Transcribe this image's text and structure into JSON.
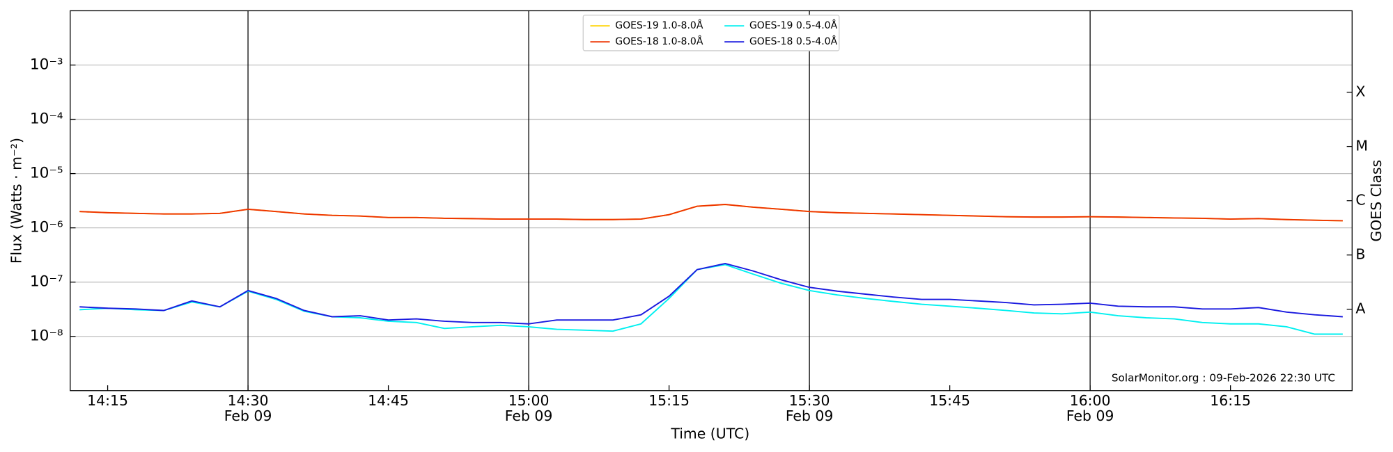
{
  "chart_data": {
    "type": "line",
    "x_label": "Time (UTC)",
    "y_label": "Flux (Watts · m⁻²)",
    "y2_label": "GOES Class",
    "annotation": "SolarMonitor.org : 09-Feb-2026 22:30 UTC",
    "ylog": true,
    "grid": true,
    "legend": "upper center",
    "xlim": [
      "14:11",
      "16:28"
    ],
    "xticks": [
      "14:15",
      {
        "value": "14:30",
        "label": [
          "14:30",
          "Feb 09"
        ]
      },
      "14:45",
      {
        "value": "15:00",
        "label": [
          "15:00",
          "Feb 09"
        ]
      },
      "15:15",
      {
        "value": "15:30",
        "label": [
          "15:30",
          "Feb 09"
        ]
      },
      "15:45",
      {
        "value": "16:00",
        "label": [
          "16:00",
          "Feb 09"
        ]
      },
      "16:15"
    ],
    "ylim": [
      1e-09,
      0.01
    ],
    "yticks": [
      {
        "value": 1e-08,
        "label": "10⁻⁸"
      },
      {
        "value": 1e-07,
        "label": "10⁻⁷"
      },
      {
        "value": 1e-06,
        "label": "10⁻⁶"
      },
      {
        "value": 1e-05,
        "label": "10⁻⁵"
      },
      {
        "value": 0.0001,
        "label": "10⁻⁴"
      },
      {
        "value": 0.001,
        "label": "10⁻³"
      }
    ],
    "y2lim": [
      1e-09,
      0.01
    ],
    "y2ticks": [
      {
        "value": 3.16e-08,
        "label": "A"
      },
      {
        "value": 3.16e-07,
        "label": "B"
      },
      {
        "value": 3.16e-06,
        "label": "C"
      },
      {
        "value": 3.16e-05,
        "label": "M"
      },
      {
        "value": 0.000316,
        "label": "X"
      }
    ],
    "x": [
      "14:12",
      "14:15",
      "14:18",
      "14:21",
      "14:24",
      "14:27",
      "14:30",
      "14:33",
      "14:36",
      "14:39",
      "14:42",
      "14:45",
      "14:48",
      "14:51",
      "14:54",
      "14:57",
      "15:00",
      "15:03",
      "15:06",
      "15:09",
      "15:12",
      "15:15",
      "15:18",
      "15:21",
      "15:24",
      "15:27",
      "15:30",
      "15:33",
      "15:36",
      "15:39",
      "15:42",
      "15:45",
      "15:48",
      "15:51",
      "15:54",
      "15:57",
      "16:00",
      "16:03",
      "16:06",
      "16:09",
      "16:12",
      "16:15",
      "16:18",
      "16:21",
      "16:24",
      "16:27"
    ],
    "series": [
      {
        "name": "GOES-19 1.0-8.0Å",
        "color": "#ffd400",
        "values": [
          2e-06,
          1.9e-06,
          1.85e-06,
          1.8e-06,
          1.8e-06,
          1.85e-06,
          2.2e-06,
          2e-06,
          1.8e-06,
          1.7e-06,
          1.65e-06,
          1.55e-06,
          1.55e-06,
          1.5e-06,
          1.48e-06,
          1.45e-06,
          1.45e-06,
          1.45e-06,
          1.42e-06,
          1.42e-06,
          1.45e-06,
          1.75e-06,
          2.5e-06,
          2.7e-06,
          2.4e-06,
          2.2e-06,
          2e-06,
          1.9e-06,
          1.85e-06,
          1.8e-06,
          1.75e-06,
          1.7e-06,
          1.65e-06,
          1.6e-06,
          1.58e-06,
          1.58e-06,
          1.6e-06,
          1.58e-06,
          1.55e-06,
          1.52e-06,
          1.5e-06,
          1.45e-06,
          1.48e-06,
          1.42e-06,
          1.38e-06,
          1.35e-06
        ]
      },
      {
        "name": "GOES-18 1.0-8.0Å",
        "color": "#ee3300",
        "values": [
          2e-06,
          1.9e-06,
          1.85e-06,
          1.8e-06,
          1.8e-06,
          1.85e-06,
          2.2e-06,
          2e-06,
          1.8e-06,
          1.7e-06,
          1.65e-06,
          1.55e-06,
          1.55e-06,
          1.5e-06,
          1.48e-06,
          1.45e-06,
          1.45e-06,
          1.45e-06,
          1.42e-06,
          1.42e-06,
          1.45e-06,
          1.75e-06,
          2.5e-06,
          2.7e-06,
          2.4e-06,
          2.2e-06,
          2e-06,
          1.9e-06,
          1.85e-06,
          1.8e-06,
          1.75e-06,
          1.7e-06,
          1.65e-06,
          1.6e-06,
          1.58e-06,
          1.58e-06,
          1.6e-06,
          1.58e-06,
          1.55e-06,
          1.52e-06,
          1.5e-06,
          1.45e-06,
          1.48e-06,
          1.42e-06,
          1.38e-06,
          1.35e-06
        ]
      },
      {
        "name": "GOES-19 0.5-4.0Å",
        "color": "#00f0f0",
        "values": [
          3.1e-08,
          3.3e-08,
          3.1e-08,
          3e-08,
          4.3e-08,
          3.5e-08,
          6.8e-08,
          4.8e-08,
          2.9e-08,
          2.3e-08,
          2.2e-08,
          1.9e-08,
          1.8e-08,
          1.4e-08,
          1.5e-08,
          1.6e-08,
          1.5e-08,
          1.35e-08,
          1.3e-08,
          1.25e-08,
          1.7e-08,
          5e-08,
          1.7e-07,
          2.1e-07,
          1.4e-07,
          9.5e-08,
          7e-08,
          5.8e-08,
          5e-08,
          4.4e-08,
          3.9e-08,
          3.6e-08,
          3.3e-08,
          3e-08,
          2.7e-08,
          2.6e-08,
          2.8e-08,
          2.4e-08,
          2.2e-08,
          2.1e-08,
          1.8e-08,
          1.7e-08,
          1.7e-08,
          1.5e-08,
          1.1e-08,
          1.1e-08
        ]
      },
      {
        "name": "GOES-18 0.5-4.0Å",
        "color": "#1a1adf",
        "values": [
          3.5e-08,
          3.3e-08,
          3.2e-08,
          3e-08,
          4.5e-08,
          3.5e-08,
          7e-08,
          5e-08,
          3e-08,
          2.3e-08,
          2.4e-08,
          2e-08,
          2.1e-08,
          1.9e-08,
          1.8e-08,
          1.8e-08,
          1.7e-08,
          2e-08,
          2e-08,
          2e-08,
          2.5e-08,
          5.5e-08,
          1.7e-07,
          2.2e-07,
          1.6e-07,
          1.1e-07,
          8e-08,
          6.8e-08,
          6e-08,
          5.3e-08,
          4.8e-08,
          4.8e-08,
          4.5e-08,
          4.2e-08,
          3.8e-08,
          3.9e-08,
          4.1e-08,
          3.6e-08,
          3.5e-08,
          3.5e-08,
          3.2e-08,
          3.2e-08,
          3.4e-08,
          2.8e-08,
          2.5e-08,
          2.3e-08
        ]
      }
    ]
  }
}
